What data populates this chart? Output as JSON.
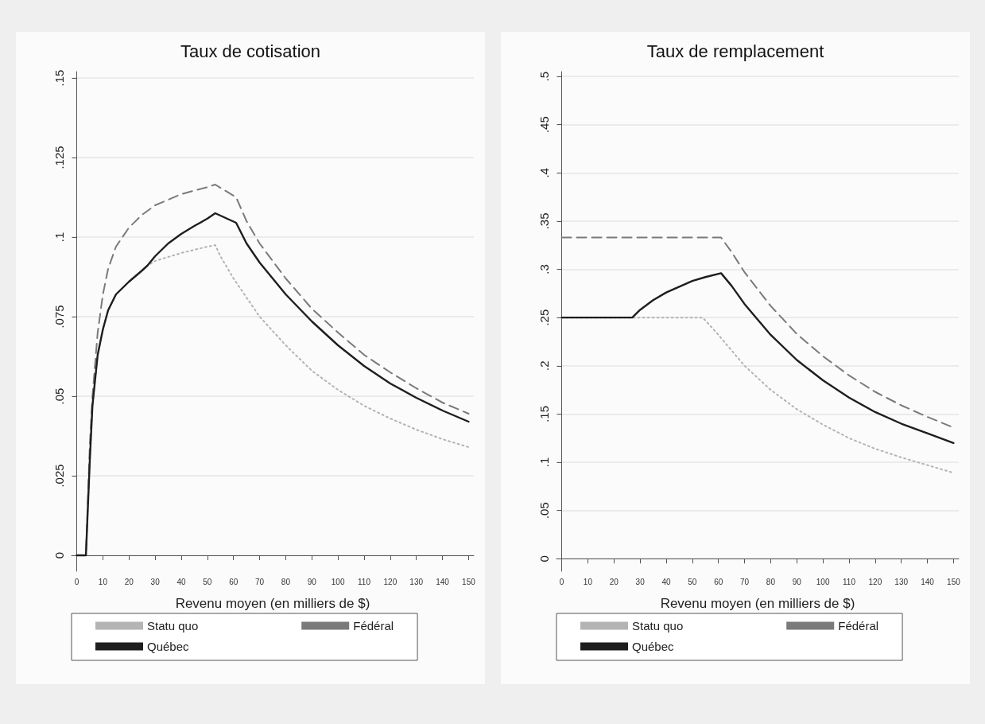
{
  "chart_data": [
    {
      "type": "line",
      "title": "Taux de cotisation",
      "xlabel": "Revenu moyen (en milliers de $)",
      "xlim": [
        -2,
        152
      ],
      "xticks": [
        0,
        10,
        20,
        30,
        40,
        50,
        60,
        70,
        80,
        90,
        100,
        110,
        120,
        130,
        140,
        150
      ],
      "ylim": [
        -0.005,
        0.152
      ],
      "yticks": [
        0,
        {
          "value": 0.025,
          "label": ".025"
        },
        {
          "value": 0.05,
          "label": ".05"
        },
        {
          "value": 0.075,
          "label": ".075"
        },
        {
          "value": 0.1,
          "label": ".1"
        },
        {
          "value": 0.125,
          "label": ".125"
        },
        {
          "value": 0.15,
          "label": ".15"
        }
      ],
      "grid": "y",
      "legend": "bottom",
      "marker": "none",
      "series": [
        {
          "name": "Statu quo",
          "color": "#b4b4b4",
          "line_style": "dotted",
          "x": [
            0,
            3.5,
            5,
            6,
            8,
            10,
            12,
            15,
            20,
            25,
            27,
            30,
            40,
            50,
            53,
            55,
            60,
            70,
            80,
            90,
            100,
            110,
            120,
            130,
            140,
            150
          ],
          "values": [
            0,
            0,
            0.03,
            0.047,
            0.063,
            0.071,
            0.077,
            0.082,
            0.086,
            0.0895,
            0.091,
            0.0925,
            0.095,
            0.097,
            0.0975,
            0.094,
            0.087,
            0.075,
            0.066,
            0.058,
            0.052,
            0.047,
            0.043,
            0.0395,
            0.0365,
            0.034
          ]
        },
        {
          "name": "Fédéral",
          "color": "#7a7a7a",
          "line_style": "dashed",
          "x": [
            0,
            3.5,
            5,
            6,
            8,
            10,
            12,
            15,
            20,
            25,
            30,
            40,
            50,
            53,
            61,
            65,
            70,
            80,
            90,
            100,
            110,
            120,
            130,
            140,
            150
          ],
          "values": [
            0,
            0,
            0.035,
            0.05,
            0.07,
            0.082,
            0.09,
            0.097,
            0.103,
            0.107,
            0.11,
            0.1135,
            0.1157,
            0.1165,
            0.1125,
            0.105,
            0.098,
            0.087,
            0.0775,
            0.07,
            0.063,
            0.0575,
            0.0525,
            0.048,
            0.0445
          ]
        },
        {
          "name": "Québec",
          "color": "#1e1e1e",
          "line_style": "solid",
          "x": [
            0,
            3.5,
            5,
            6,
            8,
            10,
            12,
            15,
            20,
            25,
            27,
            30,
            35,
            40,
            45,
            50,
            53,
            61,
            65,
            70,
            80,
            90,
            100,
            110,
            120,
            130,
            140,
            150
          ],
          "values": [
            0,
            0,
            0.03,
            0.047,
            0.063,
            0.071,
            0.077,
            0.082,
            0.086,
            0.0895,
            0.091,
            0.094,
            0.098,
            0.101,
            0.1035,
            0.1058,
            0.1075,
            0.1045,
            0.098,
            0.092,
            0.082,
            0.0735,
            0.066,
            0.0595,
            0.054,
            0.0495,
            0.0455,
            0.042
          ]
        }
      ]
    },
    {
      "type": "line",
      "title": "Taux de remplacement",
      "xlabel": "Revenu moyen (en milliers de $)",
      "xlim": [
        -2,
        152
      ],
      "xticks": [
        0,
        10,
        20,
        30,
        40,
        50,
        60,
        70,
        80,
        90,
        100,
        110,
        120,
        130,
        140,
        150
      ],
      "ylim": [
        -0.013,
        0.505
      ],
      "yticks": [
        0,
        {
          "value": 0.05,
          "label": ".05"
        },
        {
          "value": 0.1,
          "label": ".1"
        },
        {
          "value": 0.15,
          "label": ".15"
        },
        {
          "value": 0.2,
          "label": ".2"
        },
        {
          "value": 0.25,
          "label": ".25"
        },
        {
          "value": 0.3,
          "label": ".3"
        },
        {
          "value": 0.35,
          "label": ".35"
        },
        {
          "value": 0.4,
          "label": ".4"
        },
        {
          "value": 0.45,
          "label": ".45"
        },
        {
          "value": 0.5,
          "label": ".5"
        }
      ],
      "grid": "y",
      "legend": "bottom",
      "marker": "none",
      "series": [
        {
          "name": "Statu quo",
          "color": "#b4b4b4",
          "line_style": "dotted",
          "x": [
            0,
            54,
            60,
            70,
            80,
            90,
            100,
            110,
            120,
            130,
            140,
            150
          ],
          "values": [
            0.25,
            0.25,
            0.232,
            0.2,
            0.175,
            0.155,
            0.139,
            0.125,
            0.114,
            0.105,
            0.097,
            0.089
          ]
        },
        {
          "name": "Fédéral",
          "color": "#7a7a7a",
          "line_style": "dashed",
          "x": [
            0,
            61,
            65,
            70,
            80,
            90,
            100,
            110,
            120,
            130,
            140,
            150
          ],
          "values": [
            0.333,
            0.333,
            0.318,
            0.297,
            0.262,
            0.233,
            0.21,
            0.19,
            0.173,
            0.159,
            0.147,
            0.136
          ]
        },
        {
          "name": "Québec",
          "color": "#1e1e1e",
          "line_style": "solid",
          "x": [
            0,
            27,
            30,
            35,
            40,
            45,
            50,
            55,
            61,
            65,
            70,
            80,
            90,
            100,
            110,
            120,
            130,
            140,
            150
          ],
          "values": [
            0.25,
            0.25,
            0.258,
            0.268,
            0.276,
            0.282,
            0.288,
            0.292,
            0.296,
            0.283,
            0.264,
            0.232,
            0.206,
            0.185,
            0.167,
            0.152,
            0.14,
            0.13,
            0.12
          ]
        }
      ]
    }
  ]
}
